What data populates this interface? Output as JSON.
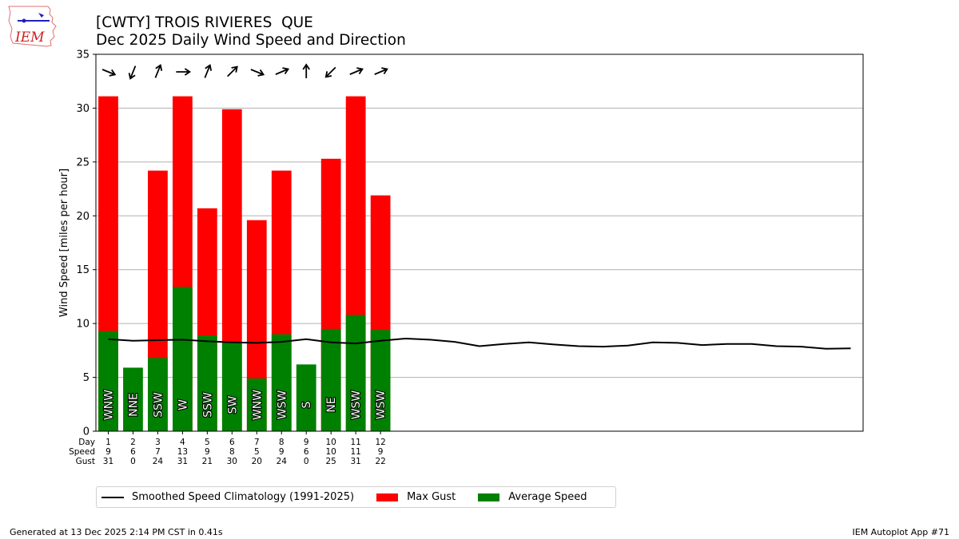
{
  "header": {
    "title_line1": "[CWTY] TROIS RIVIERES  QUE",
    "title_line2": "Dec 2025 Daily Wind Speed and Direction"
  },
  "logo": {
    "text": "IEM"
  },
  "footer": {
    "left": "Generated at 13 Dec 2025 2:14 PM CST in 0.41s",
    "right": "IEM Autoplot App #71"
  },
  "legend": {
    "climo_label": "Smoothed Speed Climatology (1991-2025)",
    "gust_label": "Max Gust",
    "avg_label": "Average Speed"
  },
  "colors": {
    "gust": "#ff0000",
    "avg": "#008000",
    "climo": "#000000"
  },
  "chart_data": {
    "type": "bar",
    "ylabel": "Wind Speed [miles per hour]",
    "ylim": [
      0,
      35
    ],
    "xlim": [
      0.5,
      31.5
    ],
    "yticks": [
      0,
      5,
      10,
      15,
      20,
      25,
      30,
      35
    ],
    "grid": "y",
    "legend_position": "below",
    "row_labels": [
      "Day",
      "Speed",
      "Gust"
    ],
    "days": [
      1,
      2,
      3,
      4,
      5,
      6,
      7,
      8,
      9,
      10,
      11,
      12
    ],
    "speed_labels": [
      9,
      6,
      7,
      13,
      9,
      8,
      5,
      9,
      6,
      10,
      11,
      9
    ],
    "gust_labels": [
      31,
      0,
      24,
      31,
      21,
      30,
      20,
      24,
      0,
      25,
      31,
      22
    ],
    "avg_speed": [
      9.3,
      5.9,
      6.8,
      13.4,
      8.9,
      8.2,
      4.9,
      9.0,
      6.2,
      9.5,
      10.8,
      9.4
    ],
    "max_gust": [
      31.1,
      0,
      24.2,
      31.1,
      20.7,
      29.9,
      19.6,
      24.2,
      0,
      25.3,
      31.1,
      21.9
    ],
    "direction": [
      "WNW",
      "NNE",
      "SSW",
      "W",
      "SSW",
      "SW",
      "WNW",
      "WSW",
      "S",
      "NE",
      "WSW",
      "WSW"
    ],
    "arrow_heading_deg": [
      112,
      202,
      22,
      90,
      22,
      45,
      112,
      67,
      0,
      225,
      67,
      67
    ],
    "climatology": {
      "x": [
        1,
        2,
        3,
        4,
        5,
        6,
        7,
        8,
        9,
        10,
        11,
        12,
        13,
        14,
        15,
        16,
        17,
        18,
        19,
        20,
        21,
        22,
        23,
        24,
        25,
        26,
        27,
        28,
        29,
        30,
        31
      ],
      "y": [
        8.55,
        8.4,
        8.45,
        8.5,
        8.35,
        8.25,
        8.2,
        8.3,
        8.55,
        8.25,
        8.15,
        8.4,
        8.6,
        8.5,
        8.3,
        7.9,
        8.1,
        8.25,
        8.05,
        7.9,
        7.85,
        7.95,
        8.25,
        8.2,
        8.0,
        8.1,
        8.1,
        7.9,
        7.85,
        7.65,
        7.7
      ]
    }
  }
}
